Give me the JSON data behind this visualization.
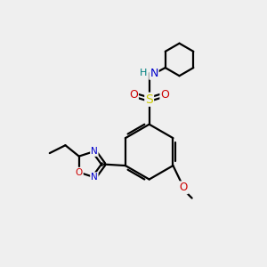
{
  "bg_color": "#efefef",
  "atom_colors": {
    "C": "#000000",
    "N": "#0000cc",
    "O": "#cc0000",
    "S": "#cccc00",
    "H": "#008080"
  },
  "bond_color": "#000000",
  "bond_width": 1.6
}
